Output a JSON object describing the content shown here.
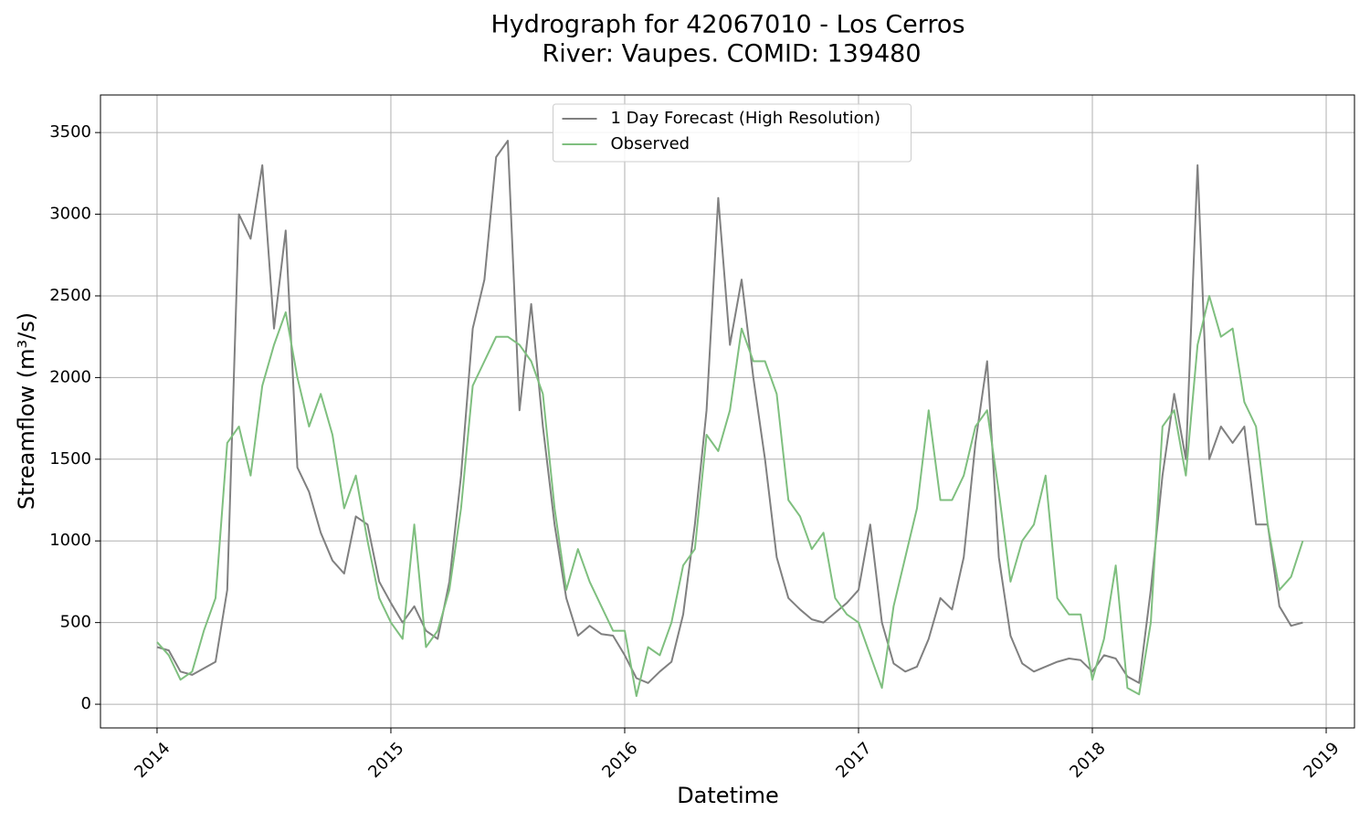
{
  "chart_data": {
    "type": "line",
    "title": "Hydrograph for 42067010 - Los Cerros",
    "subtitle": "River: Vaupes. COMID: 139480",
    "x_label": "Datetime",
    "y_label": "Streamflow (m³/s)",
    "x": [
      2014.0,
      2014.05,
      2014.1,
      2014.15,
      2014.2,
      2014.25,
      2014.3,
      2014.35,
      2014.4,
      2014.45,
      2014.5,
      2014.55,
      2014.6,
      2014.65,
      2014.7,
      2014.75,
      2014.8,
      2014.85,
      2014.9,
      2014.95,
      2015.0,
      2015.05,
      2015.1,
      2015.15,
      2015.2,
      2015.25,
      2015.3,
      2015.35,
      2015.4,
      2015.45,
      2015.5,
      2015.55,
      2015.6,
      2015.65,
      2015.7,
      2015.75,
      2015.8,
      2015.85,
      2015.9,
      2015.95,
      2016.0,
      2016.05,
      2016.1,
      2016.15,
      2016.2,
      2016.25,
      2016.3,
      2016.35,
      2016.4,
      2016.45,
      2016.5,
      2016.55,
      2016.6,
      2016.65,
      2016.7,
      2016.75,
      2016.8,
      2016.85,
      2016.9,
      2016.95,
      2017.0,
      2017.05,
      2017.1,
      2017.15,
      2017.2,
      2017.25,
      2017.3,
      2017.35,
      2017.4,
      2017.45,
      2017.5,
      2017.55,
      2017.6,
      2017.65,
      2017.7,
      2017.75,
      2017.8,
      2017.85,
      2017.9,
      2017.95,
      2018.0,
      2018.05,
      2018.1,
      2018.15,
      2018.2,
      2018.25,
      2018.3,
      2018.35,
      2018.4,
      2018.45,
      2018.5,
      2018.55,
      2018.6,
      2018.65,
      2018.7,
      2018.75,
      2018.8,
      2018.85,
      2018.9
    ],
    "series": [
      {
        "name": "1 Day Forecast (High Resolution)",
        "color": "#808080",
        "values": [
          350,
          330,
          200,
          180,
          220,
          260,
          700,
          3000,
          2850,
          3300,
          2300,
          2900,
          1450,
          1300,
          1050,
          880,
          800,
          1150,
          1100,
          750,
          620,
          500,
          600,
          450,
          400,
          750,
          1400,
          2300,
          2600,
          3350,
          3450,
          1800,
          2450,
          1700,
          1100,
          650,
          420,
          480,
          430,
          420,
          300,
          160,
          130,
          200,
          260,
          550,
          1100,
          1800,
          3100,
          2200,
          2600,
          2000,
          1500,
          900,
          650,
          580,
          520,
          500,
          560,
          620,
          700,
          1100,
          500,
          250,
          200,
          230,
          400,
          650,
          580,
          900,
          1600,
          2100,
          900,
          420,
          250,
          200,
          230,
          260,
          280,
          270,
          200,
          300,
          280,
          170,
          130,
          700,
          1400,
          1900,
          1500,
          3300,
          1500,
          1700,
          1600,
          1700,
          1100,
          1100,
          600,
          480,
          500
        ]
      },
      {
        "name": "Observed",
        "color": "#7fbf7f",
        "values": [
          380,
          300,
          150,
          200,
          450,
          650,
          1600,
          1700,
          1400,
          1950,
          2200,
          2400,
          2000,
          1700,
          1900,
          1650,
          1200,
          1400,
          1000,
          650,
          500,
          400,
          1100,
          350,
          450,
          700,
          1200,
          1950,
          2100,
          2250,
          2250,
          2200,
          2100,
          1900,
          1200,
          700,
          950,
          750,
          600,
          450,
          450,
          50,
          350,
          300,
          500,
          850,
          950,
          1650,
          1550,
          1800,
          2300,
          2100,
          2100,
          1900,
          1250,
          1150,
          950,
          1050,
          650,
          550,
          500,
          300,
          100,
          600,
          900,
          1200,
          1800,
          1250,
          1250,
          1400,
          1700,
          1800,
          1300,
          750,
          1000,
          1100,
          1400,
          650,
          550,
          550,
          150,
          400,
          850,
          100,
          60,
          500,
          1700,
          1800,
          1400,
          2200,
          2500,
          2250,
          2300,
          1850,
          1700,
          1100,
          700,
          780,
          1000
        ]
      }
    ],
    "xlim": [
      2013.758,
      2019.121
    ],
    "xticks": [
      2014,
      2015,
      2016,
      2017,
      2018,
      2019
    ],
    "ylim": [
      -145,
      3730
    ],
    "yticks": [
      0,
      500,
      1000,
      1500,
      2000,
      2500,
      3000,
      3500
    ],
    "grid": true,
    "legend": "upper center"
  }
}
